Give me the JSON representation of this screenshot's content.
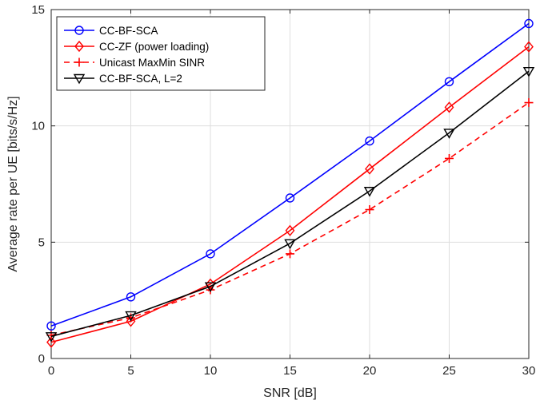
{
  "chart_data": {
    "type": "line",
    "xlabel": "SNR [dB]",
    "ylabel": "Average rate per UE [bits/s/Hz]",
    "xlim": [
      0,
      30
    ],
    "ylim": [
      0,
      15
    ],
    "xticks": [
      0,
      5,
      10,
      15,
      20,
      25,
      30
    ],
    "yticks": [
      0,
      5,
      10,
      15
    ],
    "grid": true,
    "legend_position": "top-left",
    "x": [
      0,
      5,
      10,
      15,
      20,
      25,
      30
    ],
    "series": [
      {
        "name": "CC-BF-SCA",
        "values": [
          1.4,
          2.65,
          4.5,
          6.9,
          9.35,
          11.9,
          14.4
        ],
        "color": "#0000ff",
        "dash": "solid",
        "marker": "circle"
      },
      {
        "name": "CC-ZF (power loading)",
        "values": [
          0.7,
          1.6,
          3.2,
          5.5,
          8.15,
          10.8,
          13.4
        ],
        "color": "#ff0000",
        "dash": "solid",
        "marker": "diamond"
      },
      {
        "name": "Unicast MaxMin SINR",
        "values": [
          1.0,
          1.75,
          2.95,
          4.5,
          6.4,
          8.6,
          11.0
        ],
        "color": "#ff0000",
        "dash": "dashed",
        "marker": "plus"
      },
      {
        "name": "CC-BF-SCA, L=2",
        "values": [
          0.95,
          1.85,
          3.1,
          4.95,
          7.2,
          9.7,
          12.35
        ],
        "color": "#000000",
        "dash": "solid",
        "marker": "triangle-down"
      }
    ]
  }
}
